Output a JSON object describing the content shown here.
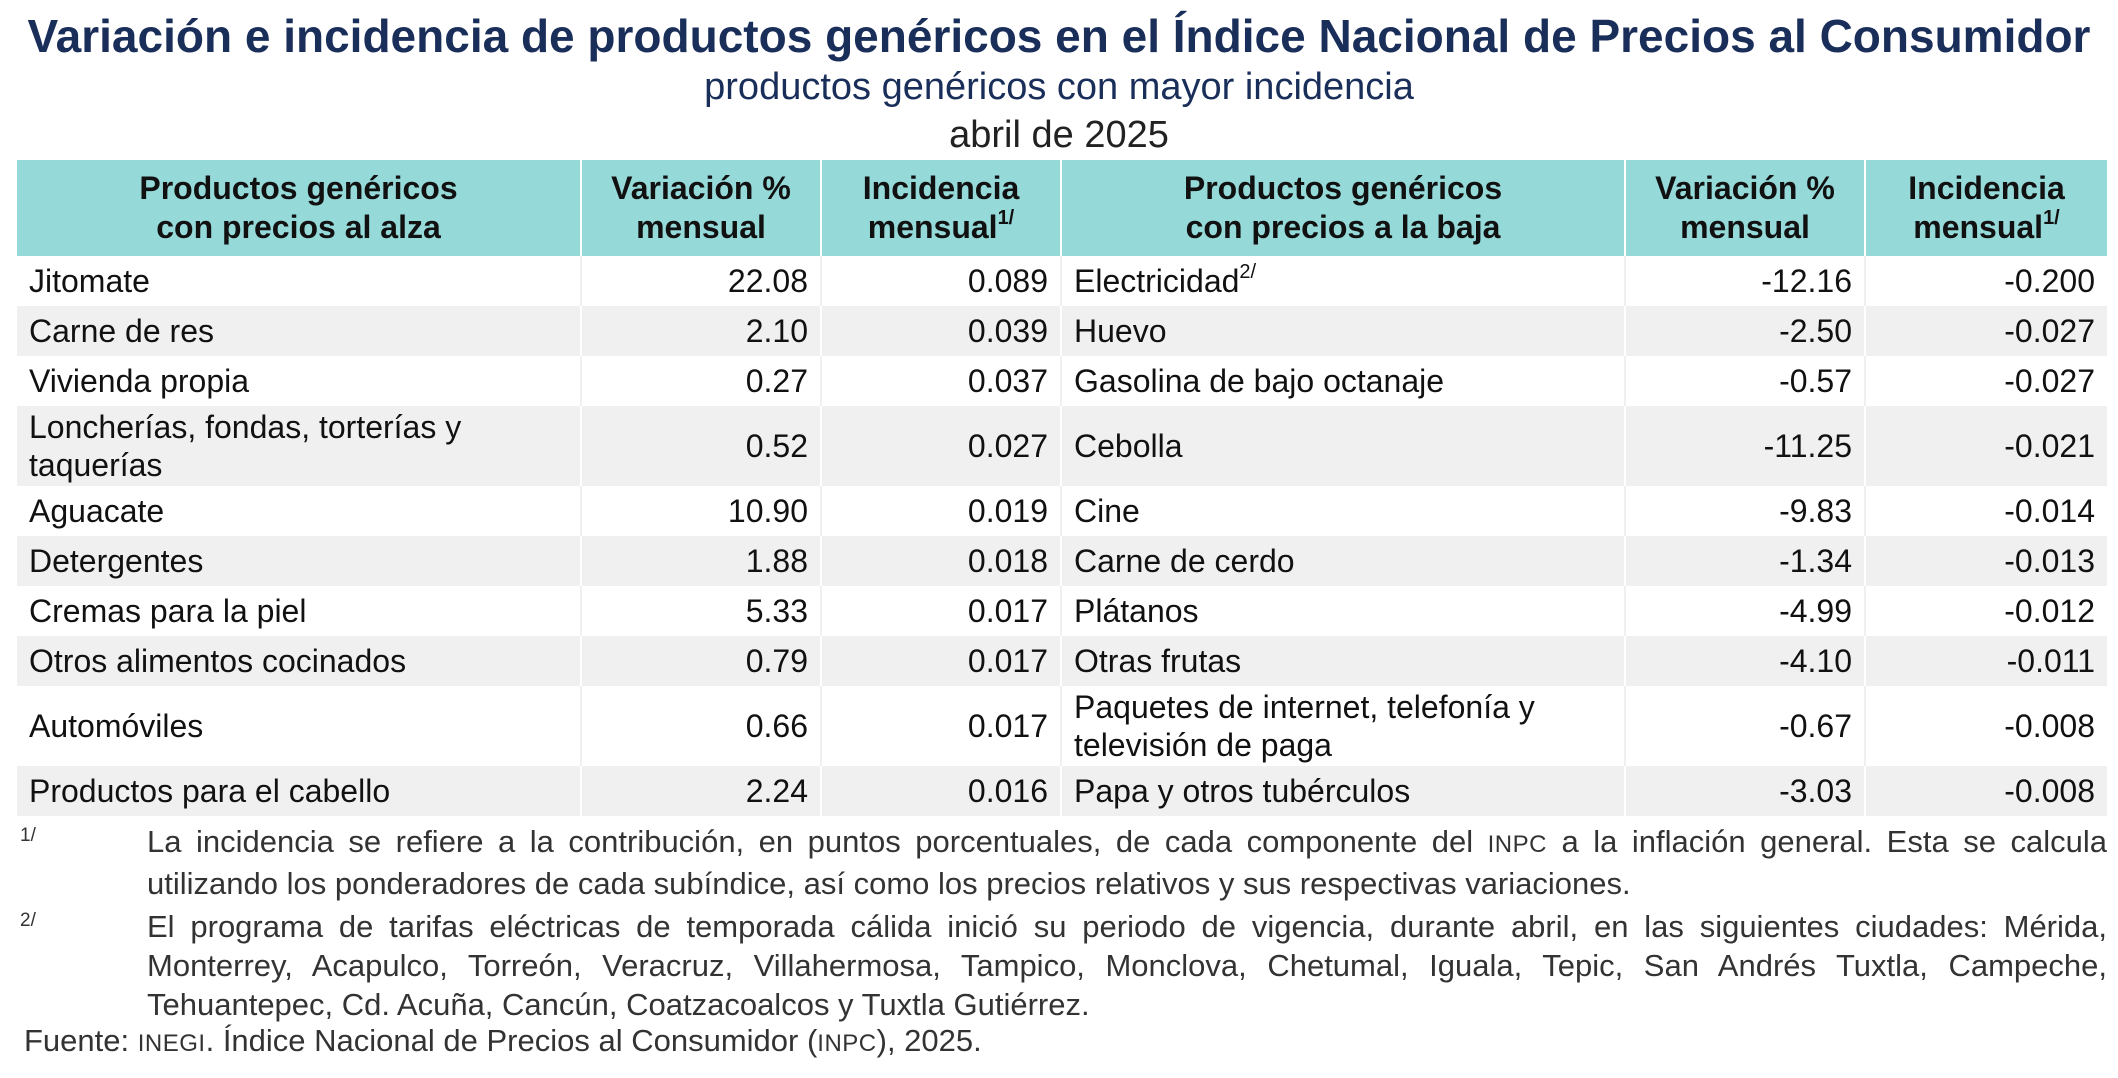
{
  "header": {
    "title": "Variación e incidencia de productos genéricos en el Índice Nacional de Precios al Consumidor",
    "subtitle": "productos genéricos con mayor incidencia",
    "period": "abril de 2025"
  },
  "table": {
    "columns": {
      "up_name_line1": "Productos genéricos",
      "up_name_line2": "con precios al alza",
      "up_var_line1": "Variación %",
      "up_var_line2": "mensual",
      "up_inc_line1": "Incidencia",
      "up_inc_line2": "mensual",
      "up_inc_sup": "1/",
      "down_name_line1": "Productos genéricos",
      "down_name_line2": "con precios a la baja",
      "down_var_line1": "Variación %",
      "down_var_line2": "mensual",
      "down_inc_line1": "Incidencia",
      "down_inc_line2": "mensual",
      "down_inc_sup": "1/"
    },
    "rows": [
      {
        "up_name": "Jitomate",
        "up_var": "22.08",
        "up_inc": "0.089",
        "down_name": "Electricidad",
        "down_sup": "2/",
        "down_var": "-12.16",
        "down_inc": "-0.200"
      },
      {
        "up_name": "Carne de res",
        "up_var": "2.10",
        "up_inc": "0.039",
        "down_name": "Huevo",
        "down_var": "-2.50",
        "down_inc": "-0.027"
      },
      {
        "up_name": "Vivienda propia",
        "up_var": "0.27",
        "up_inc": "0.037",
        "down_name": "Gasolina de bajo octanaje",
        "down_var": "-0.57",
        "down_inc": "-0.027"
      },
      {
        "up_name_line1": "Loncherías, fondas, torterías y",
        "up_name_line2": "taquerías",
        "up_var": "0.52",
        "up_inc": "0.027",
        "down_name": "Cebolla",
        "down_var": "-11.25",
        "down_inc": "-0.021"
      },
      {
        "up_name": "Aguacate",
        "up_var": "10.90",
        "up_inc": "0.019",
        "down_name": "Cine",
        "down_var": "-9.83",
        "down_inc": "-0.014"
      },
      {
        "up_name": "Detergentes",
        "up_var": "1.88",
        "up_inc": "0.018",
        "down_name": "Carne de cerdo",
        "down_var": "-1.34",
        "down_inc": "-0.013"
      },
      {
        "up_name": "Cremas para la piel",
        "up_var": "5.33",
        "up_inc": "0.017",
        "down_name": "Plátanos",
        "down_var": "-4.99",
        "down_inc": "-0.012"
      },
      {
        "up_name": "Otros alimentos cocinados",
        "up_var": "0.79",
        "up_inc": "0.017",
        "down_name": "Otras frutas",
        "down_var": "-4.10",
        "down_inc": "-0.011"
      },
      {
        "up_name": "Automóviles",
        "up_var": "0.66",
        "up_inc": "0.017",
        "down_name_line1": "Paquetes de internet, telefonía y",
        "down_name_line2": "televisión de paga",
        "down_var": "-0.67",
        "down_inc": "-0.008"
      },
      {
        "up_name": "Productos para el cabello",
        "up_var": "2.24",
        "up_inc": "0.016",
        "down_name": "Papa y otros tubérculos",
        "down_var": "-3.03",
        "down_inc": "-0.008"
      }
    ]
  },
  "notes": [
    {
      "mark": "1/",
      "text_before": "La incidencia se refiere a la contribución, en puntos porcentuales, de cada componente del",
      "abbr": "INPC",
      "text_after": "a la inflación general. Esta se calcula utilizando los ponderadores de cada subíndice, así como los precios relativos y sus respectivas variaciones."
    },
    {
      "mark": "2/",
      "text": "El programa de tarifas eléctricas de temporada cálida inició su periodo de vigencia, durante abril, en las siguientes ciudades: Mérida, Monterrey, Acapulco, Torreón, Veracruz, Villahermosa, Tampico, Monclova, Chetumal, Iguala, Tepic, San Andrés Tuxtla, Campeche, Tehuantepec, Cd. Acuña, Cancún, Coatzacoalcos y Tuxtla Gutiérrez."
    }
  ],
  "source": {
    "label": "Fuente:",
    "org": "INEGI",
    "text_mid": ". Índice Nacional de Precios al Consumidor (",
    "abbr": "INPC",
    "text_end": "), 2025."
  },
  "colors": {
    "title": "#1a2e5a",
    "header_bg": "#95d9d9",
    "stripe": "#f0f0f0"
  }
}
